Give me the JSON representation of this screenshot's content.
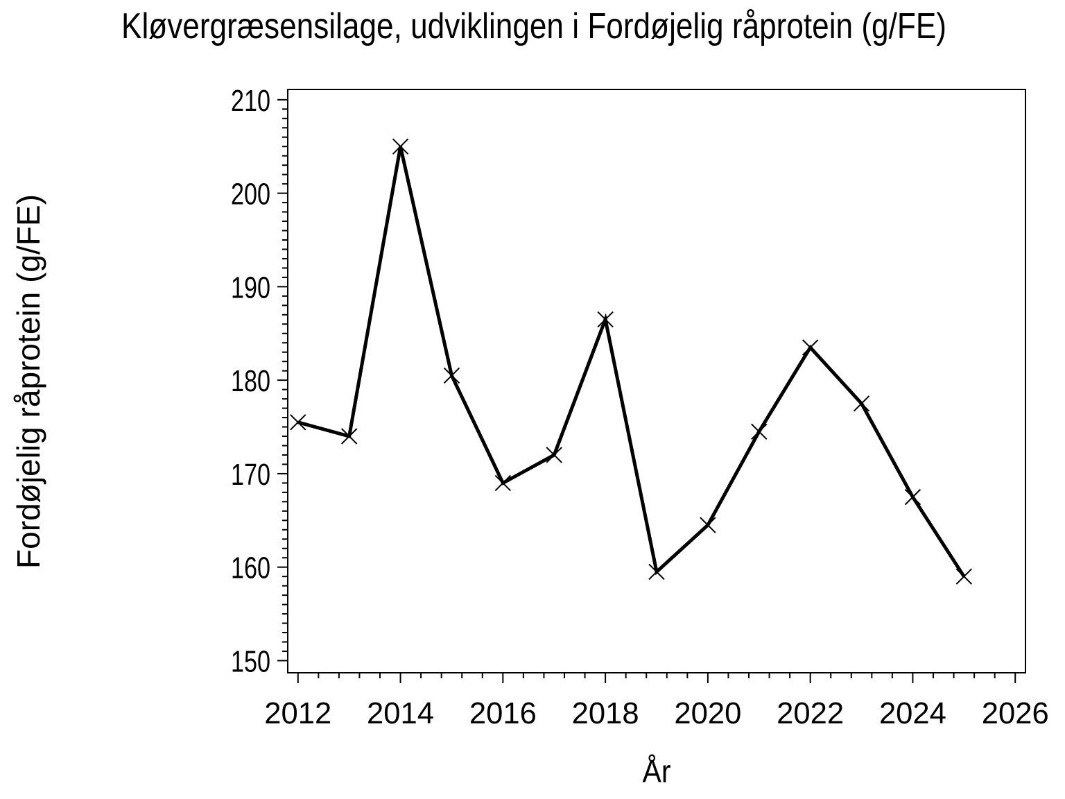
{
  "chart_data": {
    "type": "line",
    "title": "Kløvergræsensilage, udviklingen i Fordøjelig råprotein (g/FE)",
    "xlabel": "År",
    "ylabel": "Fordøjelig råprotein (g/FE)",
    "x": [
      2012,
      2013,
      2014,
      2015,
      2016,
      2017,
      2018,
      2019,
      2020,
      2021,
      2022,
      2023,
      2024,
      2025
    ],
    "series": [
      {
        "name": "Fordøjelig råprotein (g/FE)",
        "values": [
          175.5,
          174,
          205,
          180.5,
          169,
          172,
          186.5,
          159.5,
          164.5,
          174.5,
          183.5,
          177.5,
          167.5,
          159
        ]
      }
    ],
    "x_ticks": [
      2012,
      2014,
      2016,
      2018,
      2020,
      2022,
      2024,
      2026
    ],
    "y_ticks": [
      150,
      160,
      170,
      180,
      190,
      200,
      210
    ],
    "xlim": [
      2011.8,
      2026.2
    ],
    "ylim": [
      148.7,
      211.1
    ],
    "x_minor_per_major": 4,
    "y_minor_per_major": 9,
    "marker": "x",
    "grid": false,
    "legend": "none",
    "line_color": "#000000",
    "background": "#ffffff"
  }
}
